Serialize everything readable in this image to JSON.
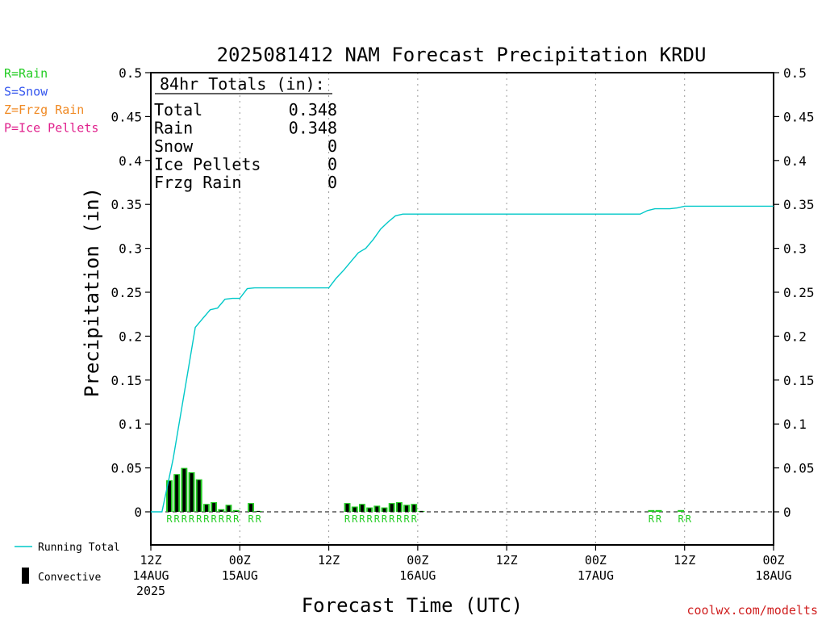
{
  "chart_data": {
    "type": "bar",
    "title": "2025081412 NAM Forecast Precipitation KRDU",
    "xlabel": "Forecast Time (UTC)",
    "ylabel": "Precipitation (in)",
    "ylim": [
      0,
      0.5
    ],
    "yticks": [
      0,
      0.05,
      0.1,
      0.15,
      0.2,
      0.25,
      0.3,
      0.35,
      0.4,
      0.45,
      0.5
    ],
    "xlim_hours": [
      0,
      84
    ],
    "grid": "vertical dotted lines at 6-hour ticks",
    "xticks": [
      {
        "hour": 0,
        "l1": "12Z",
        "l2": "14AUG",
        "l3": "2025"
      },
      {
        "hour": 12,
        "l1": "00Z",
        "l2": "15AUG",
        "l3": ""
      },
      {
        "hour": 24,
        "l1": "12Z",
        "l2": "",
        "l3": ""
      },
      {
        "hour": 36,
        "l1": "00Z",
        "l2": "16AUG",
        "l3": ""
      },
      {
        "hour": 48,
        "l1": "12Z",
        "l2": "",
        "l3": ""
      },
      {
        "hour": 60,
        "l1": "00Z",
        "l2": "17AUG",
        "l3": ""
      },
      {
        "hour": 72,
        "l1": "12Z",
        "l2": "",
        "l3": ""
      },
      {
        "hour": 84,
        "l1": "00Z",
        "l2": "18AUG",
        "l3": ""
      }
    ],
    "legend_left": [
      {
        "label": "R=Rain",
        "color": "#22cc22"
      },
      {
        "label": "S=Snow",
        "color": "#3355ee"
      },
      {
        "label": "Z=Frzg Rain",
        "color": "#f08a24"
      },
      {
        "label": "P=Ice Pellets",
        "color": "#e0208c"
      }
    ],
    "legend_bottom": [
      {
        "label": "Running Total",
        "color": "#00c8c8"
      },
      {
        "label": "Convective",
        "color": "#000000"
      }
    ],
    "totals_box": {
      "header": "84hr Totals (in):",
      "rows": [
        {
          "label": "Total",
          "value": "0.348"
        },
        {
          "label": "Rain",
          "value": "0.348"
        },
        {
          "label": "Snow",
          "value": "0"
        },
        {
          "label": "Ice Pellets",
          "value": "0"
        },
        {
          "label": "Frzg Rain",
          "value": "0"
        }
      ]
    },
    "precip_bars": [
      {
        "hour": 2.5,
        "total": 0.036,
        "convective": 0.035
      },
      {
        "hour": 3.5,
        "total": 0.043,
        "convective": 0.042
      },
      {
        "hour": 4.5,
        "total": 0.05,
        "convective": 0.049
      },
      {
        "hour": 5.5,
        "total": 0.045,
        "convective": 0.044
      },
      {
        "hour": 6.5,
        "total": 0.037,
        "convective": 0.036
      },
      {
        "hour": 7.5,
        "total": 0.009,
        "convective": 0.008
      },
      {
        "hour": 8.5,
        "total": 0.011,
        "convective": 0.01
      },
      {
        "hour": 9.5,
        "total": 0.003,
        "convective": 0.002
      },
      {
        "hour": 10.5,
        "total": 0.008,
        "convective": 0.007
      },
      {
        "hour": 11.5,
        "total": 0.002,
        "convective": 0.001
      },
      {
        "hour": 13.5,
        "total": 0.01,
        "convective": 0.009
      },
      {
        "hour": 14.5,
        "total": 0.001,
        "convective": 0.001
      },
      {
        "hour": 26.5,
        "total": 0.01,
        "convective": 0.009
      },
      {
        "hour": 27.5,
        "total": 0.006,
        "convective": 0.005
      },
      {
        "hour": 28.5,
        "total": 0.009,
        "convective": 0.008
      },
      {
        "hour": 29.5,
        "total": 0.005,
        "convective": 0.004
      },
      {
        "hour": 30.5,
        "total": 0.007,
        "convective": 0.006
      },
      {
        "hour": 31.5,
        "total": 0.005,
        "convective": 0.004
      },
      {
        "hour": 32.5,
        "total": 0.01,
        "convective": 0.009
      },
      {
        "hour": 33.5,
        "total": 0.011,
        "convective": 0.01
      },
      {
        "hour": 34.5,
        "total": 0.008,
        "convective": 0.007
      },
      {
        "hour": 35.5,
        "total": 0.009,
        "convective": 0.008
      },
      {
        "hour": 36.5,
        "total": 0.001,
        "convective": 0.001
      },
      {
        "hour": 67.5,
        "total": 0.002,
        "convective": 0
      },
      {
        "hour": 68.5,
        "total": 0.002,
        "convective": 0
      },
      {
        "hour": 71.5,
        "total": 0.002,
        "convective": 0
      }
    ],
    "ptype_label_hours": [
      2.5,
      3.5,
      4.5,
      5.5,
      6.5,
      7.5,
      8.5,
      9.5,
      10.5,
      11.5,
      13.5,
      14.5,
      26.5,
      27.5,
      28.5,
      29.5,
      30.5,
      31.5,
      32.5,
      33.5,
      34.5,
      35.5,
      67.5,
      68.5,
      71.5,
      72.5
    ],
    "ptype_label": "R",
    "running_total": {
      "name": "Running Total",
      "x": [
        0,
        1.5,
        2,
        3,
        4,
        5,
        6,
        7,
        8,
        9,
        10,
        11,
        12,
        13,
        14,
        24,
        25,
        26,
        27,
        28,
        29,
        30,
        31,
        32,
        33,
        34,
        35,
        36,
        66,
        67,
        68,
        70,
        71,
        72,
        84
      ],
      "y": [
        0,
        0,
        0.02,
        0.06,
        0.11,
        0.16,
        0.21,
        0.22,
        0.23,
        0.232,
        0.242,
        0.243,
        0.243,
        0.254,
        0.255,
        0.255,
        0.266,
        0.275,
        0.285,
        0.295,
        0.3,
        0.31,
        0.322,
        0.33,
        0.337,
        0.339,
        0.339,
        0.339,
        0.339,
        0.343,
        0.345,
        0.345,
        0.346,
        0.348,
        0.348
      ]
    }
  },
  "credit": "coolwx.com/modelts",
  "colors": {
    "rain": "#22cc22",
    "running_total": "#00c8c8",
    "convective": "#000000",
    "credit": "#d02020"
  }
}
